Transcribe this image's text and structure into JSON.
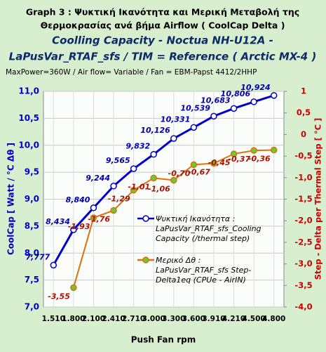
{
  "chart_data": {
    "type": "line",
    "title": [
      "Graph  3 :  Ψυκτική Ικανότητα και Μερική Μεταβολή της",
      "Θερμοκρασίας  ανά βήμα Airflow    ( CoolCap Delta )"
    ],
    "subtitle": [
      "Coolling Capacity - Noctua NH-U12A -",
      "LaPusVar_RTAF_sfs  /  TIM = Reference  ( Arctic MX-4 )"
    ],
    "info": "MaxPower=360W    /  Air flow=  Variable    /  Fan = EBM-Papst  4412/2HHP",
    "xlabel": "Push Fan rpm",
    "ylabel": "CoolCap  [  Watt  / °C Δθ ]",
    "y2label": "Step - Delta per Thermal Step [ °C ]",
    "categories": [
      "1.510",
      "1.800",
      "2.100",
      "2.410",
      "2.710",
      "3.000",
      "3.300",
      "3.600",
      "3.910",
      "4.210",
      "4.500",
      "4.800"
    ],
    "ylim": [
      7,
      11
    ],
    "yticks": [
      {
        "value": 7,
        "label": "7,0"
      },
      {
        "value": 7.5,
        "label": "7,5"
      },
      {
        "value": 8,
        "label": "8,0"
      },
      {
        "value": 8.5,
        "label": "8,5"
      },
      {
        "value": 9,
        "label": "9,0"
      },
      {
        "value": 9.5,
        "label": "9,5"
      },
      {
        "value": 10,
        "label": "10,0"
      },
      {
        "value": 10.5,
        "label": "10,5"
      },
      {
        "value": 11,
        "label": "11,0"
      }
    ],
    "y2lim": [
      -4,
      1
    ],
    "y2ticks": [
      {
        "value": -4,
        "label": "-4,0"
      },
      {
        "value": -3.5,
        "label": "-3,5"
      },
      {
        "value": -3,
        "label": "-3,0"
      },
      {
        "value": -2.5,
        "label": "-2,5"
      },
      {
        "value": -2,
        "label": "-2,0"
      },
      {
        "value": -1.5,
        "label": "-1,5"
      },
      {
        "value": -1,
        "label": "-1,0"
      },
      {
        "value": -0.5,
        "label": "-0,5"
      },
      0,
      {
        "value": 0.5,
        "label": "0,5"
      },
      1
    ],
    "grid": true,
    "series": [
      {
        "name": "Ψυκτική Ικανότητα : LaPusVar_RTAF_sfs_Cooling Capacity (/thermal step)",
        "color": "#0000cc",
        "marker": "#ffffff",
        "values": [
          7.777,
          8.434,
          8.84,
          9.244,
          9.565,
          9.832,
          10.126,
          10.331,
          10.539,
          10.683,
          10.806,
          10.924
        ],
        "value_labels": [
          "7,777",
          "8,434",
          "8,840",
          "9,244",
          "9,565",
          "9,832",
          "10,126",
          "10,331",
          "10,539",
          "10,683",
          "10,806",
          "10,924"
        ]
      },
      {
        "name": "Μερικό Δθ : LaPusVar_RTAF_sfs Step-Delta1eq (CPUe - AirIN)",
        "color": "#e0700a",
        "marker": "#66cc33",
        "axis": "y2",
        "values": [
          null,
          -3.55,
          -1.93,
          -1.76,
          -1.29,
          -1.01,
          -1.06,
          -0.7,
          -0.67,
          -0.45,
          -0.37,
          -0.36
        ],
        "value_labels": [
          null,
          "-3,55",
          "-1,93",
          "-1,76",
          "-1,29",
          "-1,01",
          "-1,06",
          "-0,70",
          "-0,67",
          "-0,45",
          "-0,37",
          "-0,36"
        ]
      }
    ]
  }
}
